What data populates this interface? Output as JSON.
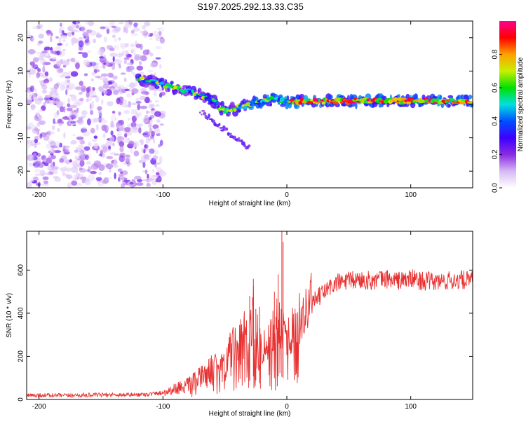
{
  "title": "S197.2025.292.13.33.C35",
  "chart_data": [
    {
      "type": "heatmap",
      "xlabel": "Height of straight line (km)",
      "ylabel": "Frequency (Hz)",
      "xlim": [
        -210,
        150
      ],
      "ylim": [
        -25,
        25
      ],
      "xticks": [
        -200,
        -100,
        0,
        100
      ],
      "yticks": [
        -20,
        -10,
        0,
        10,
        20
      ],
      "colorbar": {
        "label": "Normalized spectral amplitude",
        "range": [
          0,
          1
        ],
        "ticks": [
          0.0,
          0.2,
          0.4,
          0.6,
          0.8
        ],
        "tick_labels": [
          "0.0",
          "0.2",
          "0.4",
          "0.6",
          "0.8"
        ],
        "colormap": [
          "#ffffff",
          "#d6b8f5",
          "#8a2be2",
          "#3c00ff",
          "#0050ff",
          "#00e0e0",
          "#00e000",
          "#c8f000",
          "#ffa000",
          "#ff0000",
          "#ff0090"
        ]
      },
      "ridge": {
        "name": "dominant frequency band",
        "points": [
          [
            -120,
            8
          ],
          [
            -110,
            7
          ],
          [
            -100,
            6
          ],
          [
            -90,
            5
          ],
          [
            -80,
            4
          ],
          [
            -70,
            3
          ],
          [
            -60,
            1
          ],
          [
            -50,
            -2
          ],
          [
            -40,
            -1
          ],
          [
            -30,
            0
          ],
          [
            -20,
            1
          ],
          [
            -10,
            1.5
          ],
          [
            0,
            1
          ],
          [
            20,
            1
          ],
          [
            40,
            1
          ],
          [
            60,
            1
          ],
          [
            80,
            1.2
          ],
          [
            100,
            1
          ],
          [
            120,
            1
          ],
          [
            150,
            1
          ]
        ]
      },
      "noise_region_x": [
        -210,
        -100
      ]
    },
    {
      "type": "line",
      "xlabel": "Height of straight line (km)",
      "ylabel": "SNR (10 * v/v)",
      "xlim": [
        -210,
        150
      ],
      "ylim": [
        0,
        780
      ],
      "xticks": [
        -200,
        -100,
        0,
        100
      ],
      "yticks": [
        0,
        200,
        400,
        600
      ],
      "color": "#e83030",
      "series": [
        {
          "name": "SNR",
          "x": [
            -210,
            -200,
            -180,
            -160,
            -140,
            -120,
            -110,
            -100,
            -95,
            -90,
            -85,
            -80,
            -75,
            -70,
            -65,
            -60,
            -55,
            -50,
            -45,
            -40,
            -35,
            -30,
            -27,
            -25,
            -22,
            -20,
            -15,
            -10,
            -6,
            -4,
            -2,
            0,
            5,
            10,
            15,
            20,
            25,
            30,
            35,
            40,
            50,
            60,
            70,
            80,
            90,
            100,
            110,
            120,
            130,
            140,
            150
          ],
          "values": [
            18,
            20,
            18,
            20,
            22,
            22,
            25,
            32,
            40,
            50,
            60,
            65,
            80,
            100,
            115,
            140,
            160,
            180,
            210,
            230,
            260,
            290,
            360,
            300,
            250,
            240,
            280,
            330,
            370,
            350,
            310,
            300,
            320,
            370,
            400,
            440,
            470,
            500,
            520,
            540,
            550,
            555,
            550,
            560,
            550,
            560,
            550,
            545,
            550,
            555,
            550
          ]
        }
      ],
      "spikes": [
        [
          -25,
          420
        ],
        [
          -27,
          560
        ],
        [
          -22,
          430
        ],
        [
          -4,
          780
        ],
        [
          -3,
          730
        ],
        [
          -7,
          580
        ],
        [
          -10,
          500
        ],
        [
          -30,
          480
        ]
      ]
    }
  ]
}
